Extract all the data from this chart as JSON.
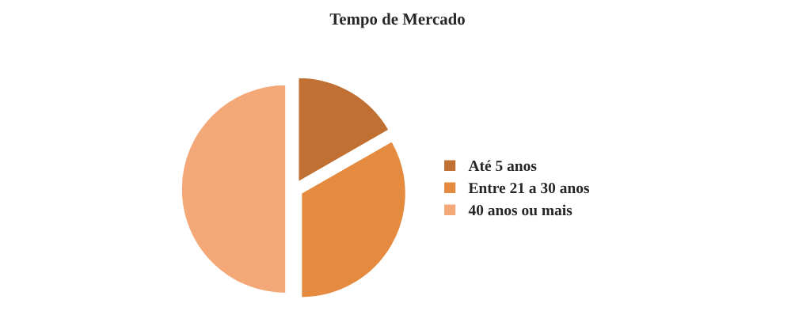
{
  "chart_data": {
    "type": "pie",
    "title": "Tempo de Mercado",
    "categories": [
      "Até 5 anos",
      "Entre 21 a 30 anos",
      "40 anos ou mais"
    ],
    "values": [
      16.7,
      33.3,
      50
    ],
    "colors": [
      "#c07032",
      "#e58b40",
      "#f4a878"
    ],
    "legend": "right"
  }
}
